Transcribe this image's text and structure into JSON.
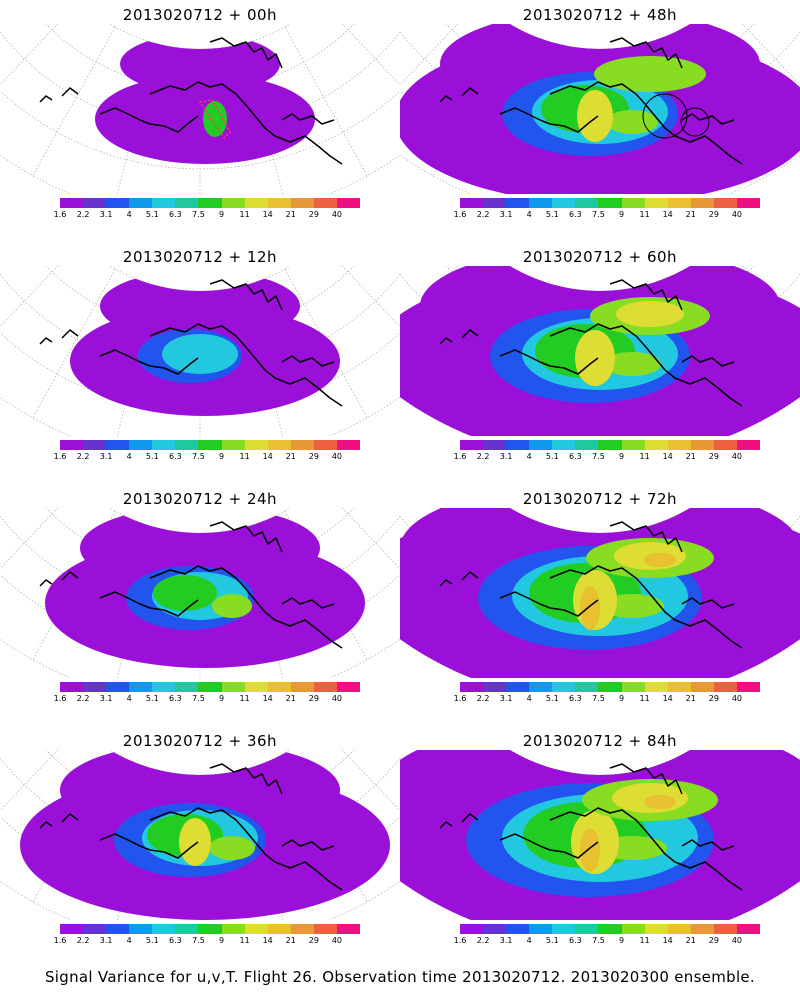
{
  "panels": [
    {
      "title": "2013020712 + 00h",
      "stage": 0,
      "marker": "polygon"
    },
    {
      "title": "2013020712 + 48h",
      "stage": 4,
      "marker": "circle"
    },
    {
      "title": "2013020712 + 12h",
      "stage": 1,
      "marker": "none"
    },
    {
      "title": "2013020712 + 60h",
      "stage": 5,
      "marker": "none"
    },
    {
      "title": "2013020712 + 24h",
      "stage": 2,
      "marker": "none"
    },
    {
      "title": "2013020712 + 72h",
      "stage": 6,
      "marker": "none"
    },
    {
      "title": "2013020712 + 36h",
      "stage": 3,
      "marker": "none"
    },
    {
      "title": "2013020712 + 84h",
      "stage": 7,
      "marker": "none"
    }
  ],
  "colorbar": {
    "labels": [
      "1.6",
      "2.2",
      "3.1",
      "4",
      "5.1",
      "6.3",
      "7.5",
      "9",
      "11",
      "14",
      "21",
      "29",
      "40"
    ],
    "colors": [
      "#9a10d8",
      "#6633cc",
      "#2255ee",
      "#1199ee",
      "#22c8e0",
      "#20c8a0",
      "#22cc22",
      "#88dd22",
      "#dddd33",
      "#e8c030",
      "#e89838",
      "#ee6040",
      "#ee1080"
    ]
  },
  "footer": "Signal Variance for u,v,T. Flight 26. Observation time 2013020712. 2013020300 ensemble."
}
